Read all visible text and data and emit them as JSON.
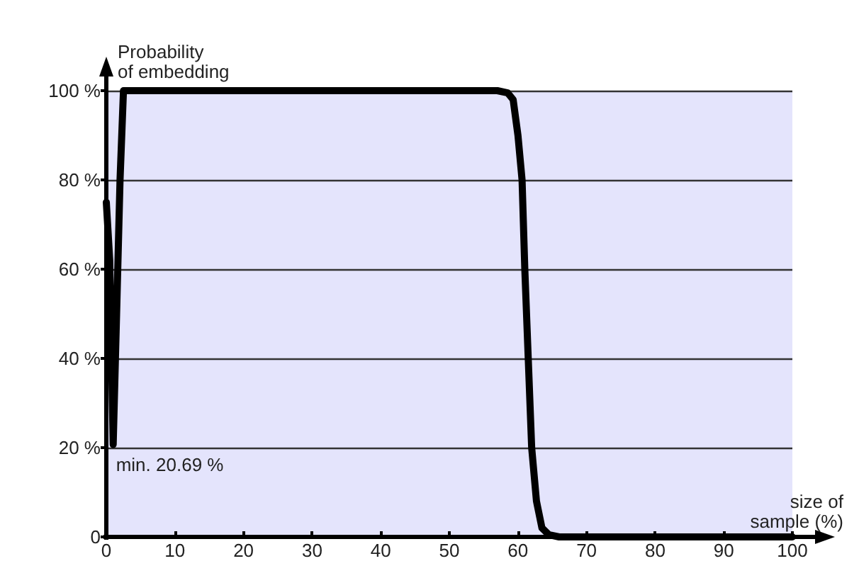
{
  "chart_data": {
    "type": "line",
    "ylabel": "Probability\nof embedding",
    "xlabel": "size of\nsample (%)",
    "x": [
      0,
      0.5,
      1,
      1.5,
      2,
      2.5,
      10,
      30,
      50,
      57,
      58.5,
      59.3,
      60,
      60.6,
      61,
      61.5,
      62,
      62.7,
      63.5,
      64.5,
      66,
      80,
      100
    ],
    "series": [
      {
        "color": "#000000",
        "values": [
          75,
          62,
          20.69,
          50,
          80,
          100,
          100,
          100,
          100,
          100,
          99.5,
          98,
          90,
          80,
          60,
          40,
          20,
          8,
          2,
          0.5,
          0,
          0,
          0
        ]
      }
    ],
    "xlim": [
      0,
      100
    ],
    "xticks": [
      0,
      10,
      20,
      30,
      40,
      50,
      60,
      70,
      80,
      90,
      100
    ],
    "ylim": [
      0,
      100
    ],
    "yticks": [
      {
        "value": 0,
        "label": "0"
      },
      {
        "value": 20,
        "label": "20 %"
      },
      {
        "value": 40,
        "label": "40 %"
      },
      {
        "value": 60,
        "label": "60 %"
      },
      {
        "value": 80,
        "label": "80 %"
      },
      {
        "value": 100,
        "label": "100 %"
      }
    ],
    "annotations": [
      {
        "text": "min. 20.69 %",
        "x": 1,
        "y": 20.69
      }
    ],
    "grid": "y",
    "marker": "none",
    "line_style": "solid"
  }
}
